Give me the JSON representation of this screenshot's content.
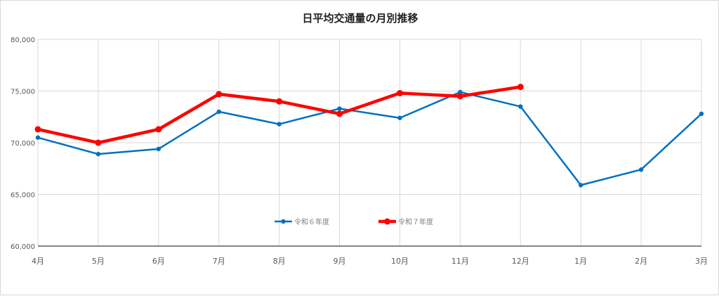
{
  "chart_data": {
    "type": "line",
    "title": "日平均交通量の月別推移",
    "categories": [
      "4月",
      "5月",
      "6月",
      "7月",
      "8月",
      "9月",
      "10月",
      "11月",
      "12月",
      "1月",
      "2月",
      "3月"
    ],
    "ylim": [
      60000,
      80000
    ],
    "yticks": [
      60000,
      65000,
      70000,
      75000,
      80000
    ],
    "ytick_labels": [
      "60,000",
      "65,000",
      "70,000",
      "75,000",
      "80,000"
    ],
    "grid": true,
    "legend_placement": "bottom-center",
    "series": [
      {
        "name": "令和６年度",
        "color": "#0070c0",
        "values": [
          70500,
          68900,
          69400,
          73000,
          71800,
          73300,
          72400,
          74900,
          73500,
          65900,
          67400,
          72800
        ]
      },
      {
        "name": "令和７年度",
        "color": "#ff0000",
        "values": [
          71300,
          70000,
          71300,
          74700,
          74000,
          72800,
          74800,
          74500,
          75400,
          null,
          null,
          null
        ]
      }
    ]
  }
}
